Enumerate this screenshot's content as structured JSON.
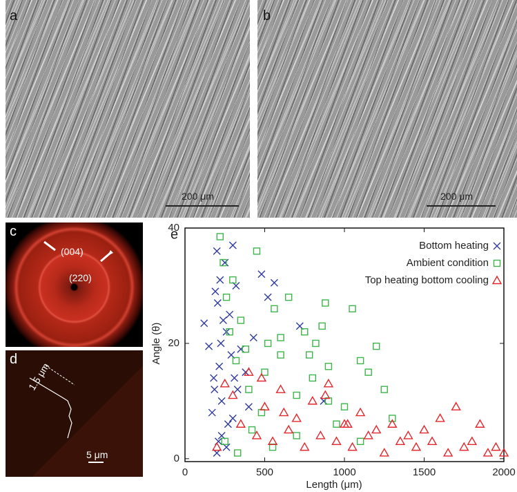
{
  "panels": {
    "a": {
      "label": "a",
      "scale_bar": "200 μm"
    },
    "b": {
      "label": "b",
      "scale_bar": "200 μm"
    },
    "c": {
      "label": "c",
      "peak_1": "(004)",
      "peak_2": "(220)"
    },
    "d": {
      "label": "d",
      "width": "1.5 μm",
      "scale_bar": "5 μm"
    },
    "e": {
      "label": "e"
    }
  },
  "chart_data": {
    "type": "scatter",
    "x_label": "Length (μm)",
    "y_label": "Angle (θ)",
    "xlim": [
      0,
      2000
    ],
    "xticks": [
      0,
      500,
      1000,
      1500,
      2000
    ],
    "ylim": [
      -0.5,
      40
    ],
    "yticks": [
      0,
      20,
      40
    ],
    "legend": "top-right",
    "series": [
      {
        "name": "Bottom heating",
        "color": "#2e3a9e",
        "marker": "x",
        "x": [
          120,
          150,
          170,
          185,
          190,
          200,
          205,
          210,
          215,
          220,
          225,
          230,
          240,
          250,
          260,
          270,
          280,
          290,
          300,
          310,
          320,
          330,
          350,
          380,
          400,
          430,
          480,
          520,
          560,
          720,
          870,
          200,
          230,
          260,
          300,
          180
        ],
        "values": [
          23.5,
          19.5,
          8,
          12,
          29,
          36,
          27,
          3,
          16,
          31,
          20,
          10,
          24,
          34,
          22,
          6,
          25,
          18,
          37,
          14,
          30,
          12,
          19,
          15,
          9,
          21,
          32,
          28,
          30.5,
          23,
          10,
          1,
          4,
          2,
          7,
          14
        ]
      },
      {
        "name": "Ambient condition",
        "color": "#3db54a",
        "marker": "square",
        "x": [
          220,
          240,
          260,
          280,
          300,
          320,
          350,
          380,
          400,
          450,
          480,
          500,
          520,
          560,
          600,
          650,
          700,
          750,
          800,
          820,
          860,
          880,
          900,
          950,
          1000,
          1050,
          1100,
          1150,
          1200,
          1250,
          1300,
          250,
          330,
          420,
          550,
          700,
          900,
          1100,
          600,
          780
        ],
        "values": [
          38.5,
          34,
          28,
          22,
          31,
          17,
          24,
          19,
          12,
          36,
          8,
          15,
          20,
          26,
          18,
          28,
          11,
          22,
          14,
          20,
          23,
          27,
          16,
          6,
          9,
          26,
          17,
          15,
          19.5,
          12,
          7,
          3,
          1,
          5,
          2,
          4,
          10,
          3,
          21,
          18
        ]
      },
      {
        "name": "Top heating bottom cooling",
        "color": "#e3262b",
        "marker": "triangle",
        "x": [
          200,
          250,
          300,
          350,
          400,
          450,
          500,
          550,
          600,
          650,
          700,
          750,
          800,
          850,
          900,
          950,
          1000,
          1050,
          1100,
          1150,
          1200,
          1250,
          1300,
          1350,
          1400,
          1450,
          1500,
          1550,
          1600,
          1650,
          1700,
          1750,
          1800,
          1850,
          1900,
          1950,
          2000,
          480,
          620,
          880,
          1020
        ],
        "values": [
          2,
          13,
          11,
          6,
          15,
          4,
          9,
          3,
          12,
          5,
          7,
          2,
          10,
          4,
          13,
          3,
          6,
          2,
          8,
          4,
          5,
          1,
          6,
          3,
          4,
          2,
          5,
          3,
          7,
          1,
          9,
          2,
          3,
          6,
          1,
          2,
          1,
          14,
          8,
          11,
          6
        ]
      }
    ]
  }
}
